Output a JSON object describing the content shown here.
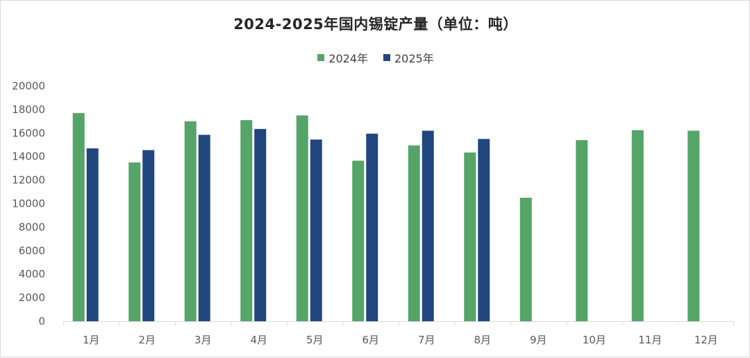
{
  "chart_data": {
    "type": "bar",
    "title": "2024-2025年国内锡锭产量（单位：吨）",
    "categories": [
      "1月",
      "2月",
      "3月",
      "4月",
      "5月",
      "6月",
      "7月",
      "8月",
      "9月",
      "10月",
      "11月",
      "12月"
    ],
    "series": [
      {
        "name": "2024年",
        "color": "#55a468",
        "values": [
          17700,
          13500,
          17000,
          17100,
          17500,
          13650,
          14950,
          14350,
          10500,
          15400,
          16250,
          16200
        ]
      },
      {
        "name": "2025年",
        "color": "#22467e",
        "values": [
          14700,
          14550,
          15850,
          16350,
          15450,
          15950,
          16200,
          15500,
          null,
          null,
          null,
          null
        ]
      }
    ],
    "ylim": [
      0,
      20000
    ],
    "yticks": [
      "0",
      "2000",
      "4000",
      "6000",
      "8000",
      "10000",
      "12000",
      "14000",
      "16000",
      "18000",
      "20000"
    ],
    "legend_position": "top-center",
    "grid": false
  }
}
